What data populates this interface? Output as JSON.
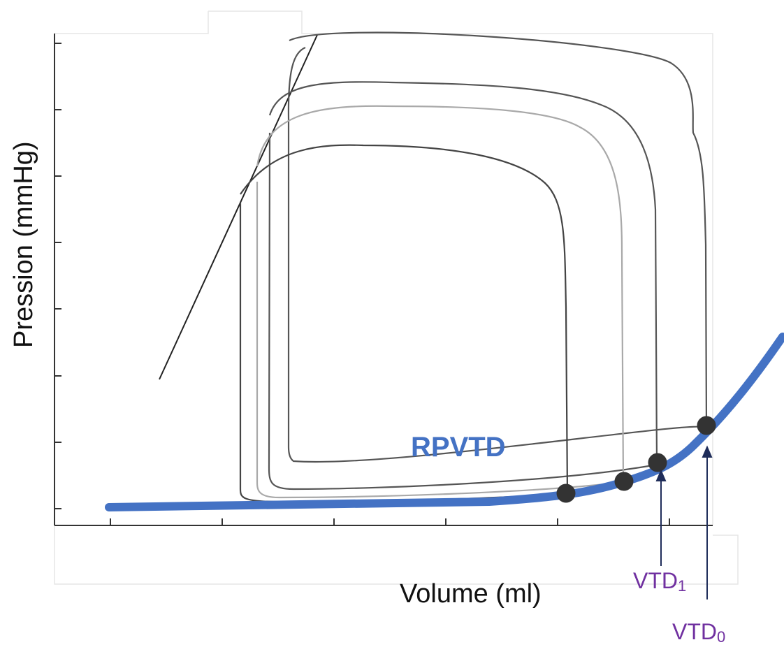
{
  "chart_data": {
    "type": "line",
    "title": "",
    "xlabel": "Volume (ml)",
    "ylabel": "Pression (mmHg)",
    "grid": false,
    "pv_loops": {
      "count": 4,
      "colors": [
        "#555555",
        "#555555",
        "#a9a9a9",
        "#444444"
      ]
    },
    "esp_line": {
      "color": "#222222"
    },
    "edpvr": {
      "label": "RPVTD",
      "color": "#4472c4"
    },
    "annotations": [
      {
        "main": "VTD",
        "sub": "1",
        "color": "#7030a0"
      },
      {
        "main": "VTD",
        "sub": "0",
        "color": "#7030a0"
      }
    ]
  }
}
